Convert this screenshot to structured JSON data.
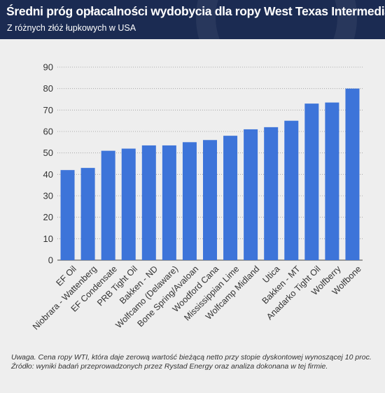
{
  "header": {
    "title": "Średni próg opłacalności wydobycia dla ropy West Texas Intermediate",
    "subtitle": "Z różnych złóż łupkowych w USA"
  },
  "footer": {
    "note": "Uwaga. Cena ropy WTI, która daje zerową wartość bieżącą netto przy stopie dyskontowej wynoszącej 10 proc.",
    "source": "Źródło: wyniki badań przeprowadzonych przez Rystad Energy oraz analiza dokonana w tej firmie."
  },
  "colors": {
    "bar": "#3d74d9",
    "header_bg": "#1b2b52",
    "plot_bg": "#eeeeee"
  },
  "chart_data": {
    "type": "bar",
    "title": "Średni próg opłacalności wydobycia dla ropy West Texas Intermediate",
    "subtitle": "Z różnych złóż łupkowych w USA",
    "xlabel": "",
    "ylabel": "",
    "ylim": [
      0,
      90
    ],
    "yticks": [
      0,
      10,
      20,
      30,
      40,
      50,
      60,
      70,
      80,
      90
    ],
    "grid": "horizontal dotted",
    "categories": [
      "EF Oil",
      "Niobrara - Wattenberg",
      "EF Condensate",
      "PRB Tight Oil",
      "Bakken - ND",
      "Wolfcamo (Delaware)",
      "Bone Spring/Avaloan",
      "Woodford Cana",
      "Mississippian Lime",
      "Wolfcamp Midland",
      "Utica",
      "Bakken - MT",
      "Anadarko Tight Oil",
      "Wolfberry",
      "Wolfbone"
    ],
    "values": [
      42,
      43,
      51,
      52,
      53.5,
      53.5,
      55,
      56,
      58,
      61,
      62,
      65,
      73,
      73.5,
      80
    ]
  }
}
